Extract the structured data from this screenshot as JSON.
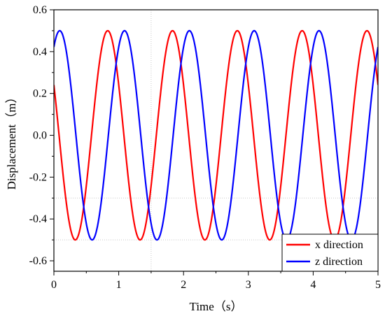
{
  "chart_data": {
    "type": "line",
    "xlabel": "Time（s）",
    "ylabel": "Displacement（m）",
    "xlim": [
      0,
      5
    ],
    "ylim": [
      -0.65,
      0.6
    ],
    "xticks": [
      "0",
      "1",
      "2",
      "3",
      "4",
      "5"
    ],
    "yticks": [
      "-0.6",
      "-0.4",
      "-0.2",
      "0.0",
      "0.2",
      "0.4",
      "0.6"
    ],
    "legend_position": "bottom-right",
    "reference_lines": {
      "x": 1.5,
      "y": [
        -0.3,
        -0.5
      ]
    },
    "series": [
      {
        "name": "x direction",
        "color": "#ff0000",
        "amplitude": 0.5,
        "period": 1.0,
        "peak_times": [
          0.83,
          1.83,
          2.83,
          3.83,
          4.83
        ]
      },
      {
        "name": "z direction",
        "color": "#0000ff",
        "amplitude": 0.5,
        "period": 1.0,
        "peak_times": [
          0.09,
          1.09,
          2.09,
          3.09,
          4.09
        ]
      }
    ]
  }
}
